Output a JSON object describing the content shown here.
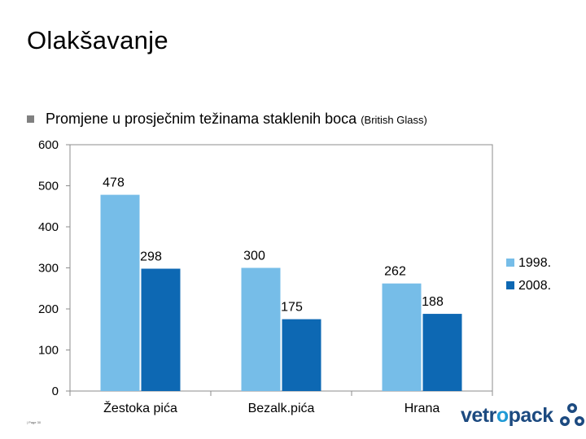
{
  "slide": {
    "title": "Olakšavanje",
    "bullet_text": "Promjene u prosječnim težinama staklenih boca",
    "bullet_source": "(British Glass)",
    "footer_note": "| Page 30"
  },
  "logo": {
    "text_main": "vetr",
    "text_accent": "o",
    "text_end": "pack",
    "color_main": "#1c4a80",
    "color_accent": "#1f9ad6"
  },
  "chart_data": {
    "type": "bar",
    "categories": [
      "Žestoka pića",
      "Bezalk.pića",
      "Hrana"
    ],
    "series": [
      {
        "name": "1998.",
        "values": [
          478,
          300,
          262
        ],
        "color": "#76bde8"
      },
      {
        "name": "2008.",
        "values": [
          298,
          175,
          188
        ],
        "color": "#0d68b3"
      }
    ],
    "ylim": [
      0,
      600
    ],
    "yticks": [
      0,
      100,
      200,
      300,
      400,
      500,
      600
    ],
    "grid": false,
    "legend_position": "right"
  }
}
